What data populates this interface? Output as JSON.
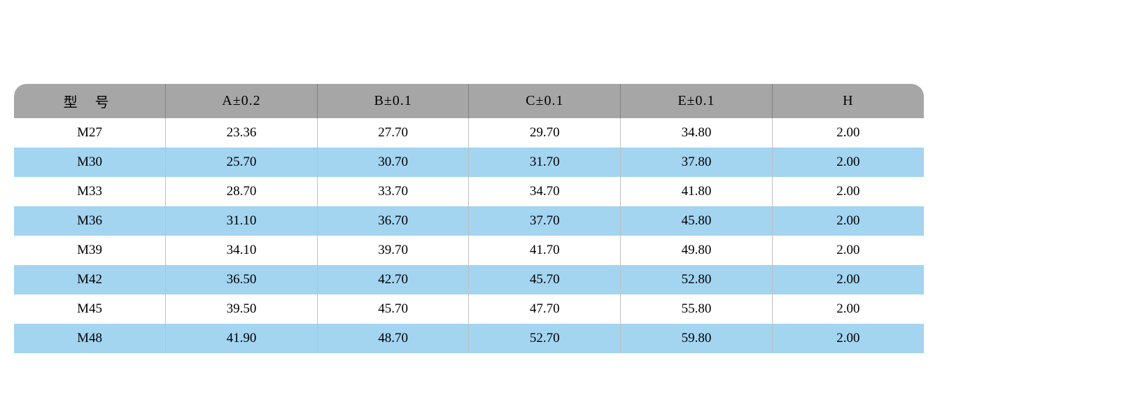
{
  "table": {
    "type": "table",
    "header_bg": "#a6a6a6",
    "row_odd_bg": "#ffffff",
    "row_even_bg": "#a3d4f0",
    "border_color": "#c0c0c0",
    "header_border_color": "#808080",
    "text_color": "#000000",
    "font_size_header": 20,
    "font_size_body": 19,
    "border_radius_top": 18,
    "columns": [
      {
        "label": "型 号",
        "width": "1fr"
      },
      {
        "label": "A±0.2",
        "width": "1fr"
      },
      {
        "label": "B±0.1",
        "width": "1fr"
      },
      {
        "label": "C±0.1",
        "width": "1fr"
      },
      {
        "label": "E±0.1",
        "width": "1fr"
      },
      {
        "label": "H",
        "width": "1fr"
      }
    ],
    "rows": [
      [
        "M27",
        "23.36",
        "27.70",
        "29.70",
        "34.80",
        "2.00"
      ],
      [
        "M30",
        "25.70",
        "30.70",
        "31.70",
        "37.80",
        "2.00"
      ],
      [
        "M33",
        "28.70",
        "33.70",
        "34.70",
        "41.80",
        "2.00"
      ],
      [
        "M36",
        "31.10",
        "36.70",
        "37.70",
        "45.80",
        "2.00"
      ],
      [
        "M39",
        "34.10",
        "39.70",
        "41.70",
        "49.80",
        "2.00"
      ],
      [
        "M42",
        "36.50",
        "42.70",
        "45.70",
        "52.80",
        "2.00"
      ],
      [
        "M45",
        "39.50",
        "45.70",
        "47.70",
        "55.80",
        "2.00"
      ],
      [
        "M48",
        "41.90",
        "48.70",
        "52.70",
        "59.80",
        "2.00"
      ]
    ]
  }
}
